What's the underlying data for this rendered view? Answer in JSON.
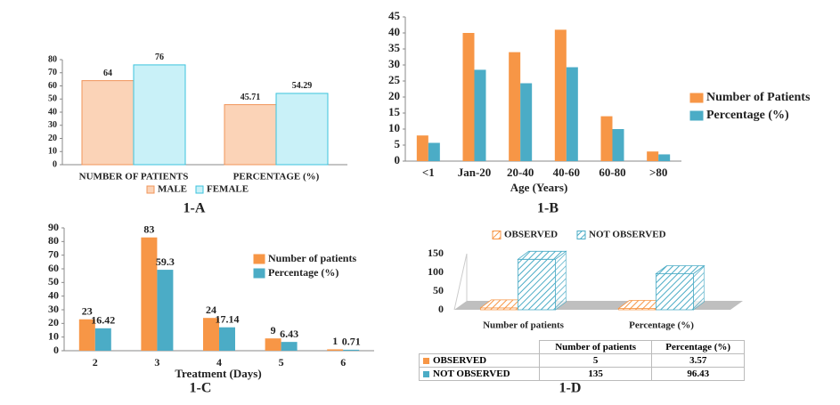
{
  "chart_data": [
    {
      "type": "bar",
      "title": "1-A",
      "categories": [
        "NUMBER OF PATIENTS",
        "PERCENTAGE (%)"
      ],
      "series": [
        {
          "name": "MALE",
          "color": "#fbd3b7",
          "edgecolor": "#f0945a",
          "values": [
            64,
            45.71
          ]
        },
        {
          "name": "FEMALE",
          "color": "#c9f1f8",
          "edgecolor": "#3cc3dc",
          "values": [
            76,
            54.29
          ]
        }
      ],
      "ylim": [
        0,
        80
      ],
      "yticks": [
        0,
        10,
        20,
        30,
        40,
        50,
        60,
        70,
        80
      ],
      "legend": "bottom",
      "data_labels": true
    },
    {
      "type": "bar",
      "title": "1-B",
      "xlabel": "Age (Years)",
      "categories": [
        "<1",
        "Jan-20",
        "20-40",
        "40-60",
        "60-80",
        ">80"
      ],
      "series": [
        {
          "name": "Number of Patients",
          "color": "#f79646",
          "values": [
            8,
            40,
            34,
            41,
            14,
            3
          ]
        },
        {
          "name": "Percentage (%)",
          "color": "#4bacc6",
          "values": [
            5.7,
            28.5,
            24.3,
            29.3,
            10,
            2.1
          ]
        }
      ],
      "ylim": [
        0,
        45
      ],
      "yticks": [
        0,
        5,
        10,
        15,
        20,
        25,
        30,
        35,
        40,
        45
      ],
      "legend": "right",
      "data_labels": false
    },
    {
      "type": "bar",
      "title": "1-C",
      "xlabel": "Treatment (Days)",
      "categories": [
        "2",
        "3",
        "4",
        "5",
        "6"
      ],
      "series": [
        {
          "name": "Number of patients",
          "color": "#f79646",
          "values": [
            23,
            83,
            24,
            9,
            1
          ]
        },
        {
          "name": "Percentage (%)",
          "color": "#4bacc6",
          "values": [
            16.42,
            59.3,
            17.14,
            6.43,
            0.71
          ]
        }
      ],
      "ylim": [
        0,
        90
      ],
      "yticks": [
        0,
        10,
        20,
        30,
        40,
        50,
        60,
        70,
        80,
        90
      ],
      "legend": "right",
      "data_labels": true
    },
    {
      "type": "bar3d",
      "title": "1-D",
      "categories": [
        "Number of patients",
        "Percentage (%)"
      ],
      "series": [
        {
          "name": "OBSERVED",
          "color": "#f79646",
          "values": [
            5,
            3.57
          ]
        },
        {
          "name": "NOT OBSERVED",
          "color": "#4bacc6",
          "values": [
            135,
            96.43
          ]
        }
      ],
      "ylim": [
        0,
        150
      ],
      "yticks": [
        0,
        50,
        100,
        150
      ],
      "legend": "top",
      "data_table": true
    }
  ]
}
